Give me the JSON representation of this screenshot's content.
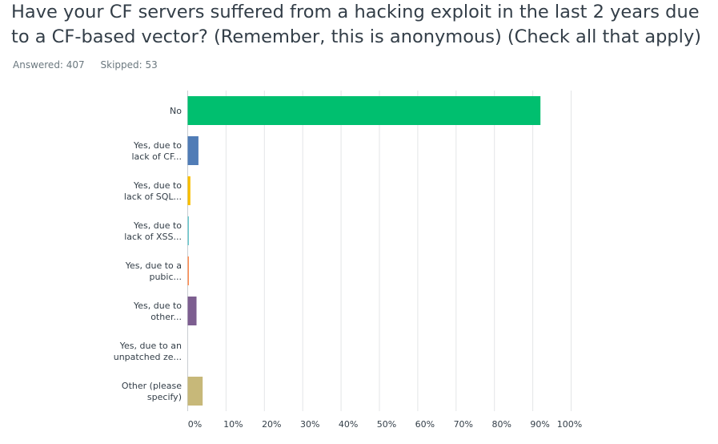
{
  "question": {
    "title": "Have your CF servers suffered from a hacking exploit in the last 2 years due to a CF-based vector? (Remember, this is anonymous) (Check all that apply)",
    "answered": "Answered: 407",
    "skipped": "Skipped: 53"
  },
  "chart_data": {
    "type": "bar",
    "orientation": "horizontal",
    "categories": [
      [
        "No"
      ],
      [
        "Yes, due to",
        "lack of CF..."
      ],
      [
        "Yes, due to",
        "lack of SQL..."
      ],
      [
        "Yes, due to",
        "lack of XSS..."
      ],
      [
        "Yes, due to a",
        "pubic..."
      ],
      [
        "Yes, due to",
        "other..."
      ],
      [
        "Yes, due to an",
        "unpatched ze..."
      ],
      [
        "Other (please",
        "specify)"
      ]
    ],
    "values": [
      92,
      2.8,
      0.7,
      0.3,
      0.3,
      2.3,
      0,
      3.9
    ],
    "colors": [
      "#00bf6f",
      "#507cb6",
      "#f9be00",
      "#6bc8cd",
      "#ff8b4f",
      "#7d5e90",
      "#d25f90",
      "#c7b879"
    ],
    "xlim": [
      0,
      100
    ],
    "xticks": [
      "0%",
      "10%",
      "20%",
      "30%",
      "40%",
      "50%",
      "60%",
      "70%",
      "80%",
      "90%",
      "100%"
    ],
    "grid": true,
    "xlabel": "",
    "ylabel": ""
  }
}
